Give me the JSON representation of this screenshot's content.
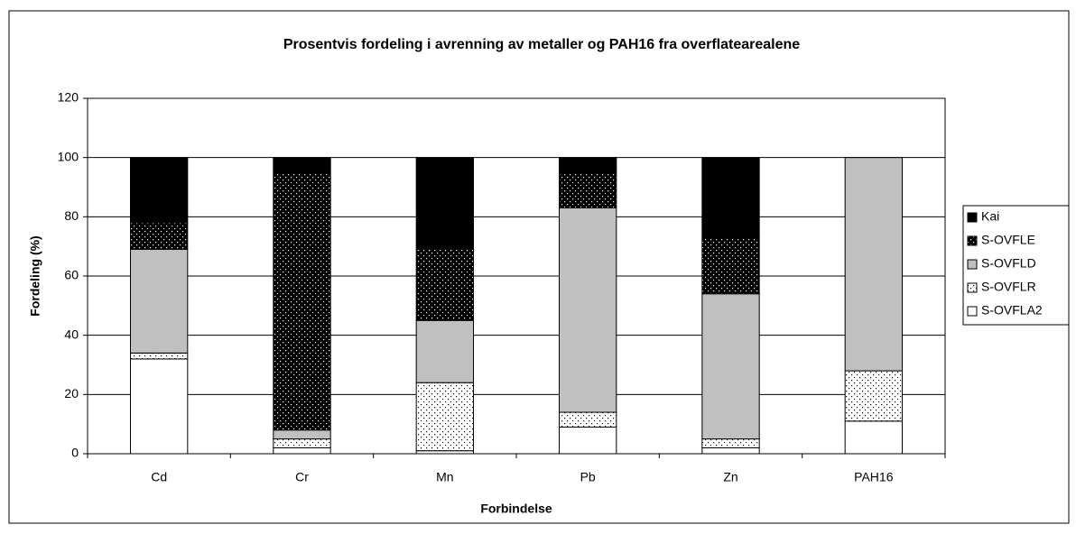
{
  "chart_data": {
    "type": "stacked_bar",
    "title": "Prosentvis fordeling i avrenning av metaller og PAH16 fra overflatearealene",
    "x_label": "Forbindelse",
    "y_label": "Fordeling (%)",
    "categories": [
      "Cd",
      "Cr",
      "Mn",
      "Pb",
      "Zn",
      "PAH16"
    ],
    "series": [
      {
        "name": "S-OVFLA2",
        "color": "#ffffff",
        "pattern": "none",
        "values": [
          32,
          2,
          1,
          9,
          2,
          11
        ]
      },
      {
        "name": "S-OVFLR",
        "color": "#ffffff",
        "pattern": "dots",
        "values": [
          2,
          3,
          23,
          5,
          3,
          17
        ]
      },
      {
        "name": "S-OVFLD",
        "color": "#c0c0c0",
        "pattern": "none",
        "values": [
          35,
          3,
          21,
          69,
          49,
          72
        ]
      },
      {
        "name": "S-OVFLE",
        "color": "#000000",
        "pattern": "dots",
        "values": [
          9,
          87,
          24,
          12,
          19,
          0
        ]
      },
      {
        "name": "Kai",
        "color": "#000000",
        "pattern": "none",
        "values": [
          22,
          5,
          31,
          5,
          27,
          0
        ]
      }
    ],
    "ylim": [
      0,
      120
    ],
    "yticks": [
      0,
      20,
      40,
      60,
      80,
      100,
      120
    ],
    "grid": true,
    "legend": "right"
  }
}
